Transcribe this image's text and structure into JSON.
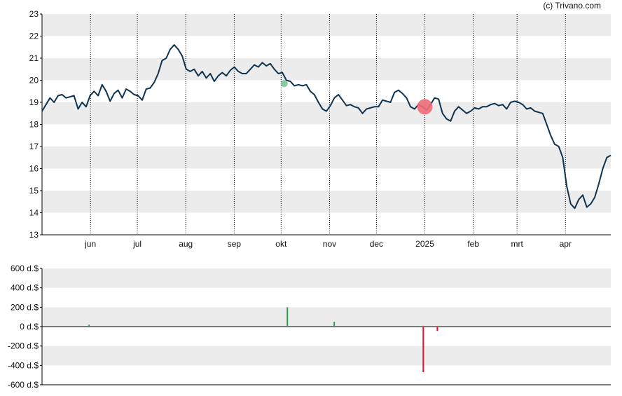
{
  "copyright": "(c) Trivano.com",
  "colors": {
    "price_line": "#0d3352",
    "band": "#ececec",
    "axis": "#000000",
    "buy": "#2e9e4e",
    "sell": "#e8132c",
    "marker_buy": "#7cc49a",
    "marker_sell": "#ef6b7a"
  },
  "chart_data": [
    {
      "type": "line",
      "title": "",
      "ylim": [
        13,
        23
      ],
      "y_ticks": [
        "23",
        "22",
        "21",
        "20",
        "19",
        "18",
        "17",
        "16",
        "15",
        "14",
        "13"
      ],
      "x_ticks": [
        "jun",
        "jul",
        "aug",
        "sep",
        "okt",
        "nov",
        "dec",
        "2025",
        "feb",
        "mrt",
        "apr"
      ],
      "grid": "dotted vertical month lines, alternating horizontal bands",
      "series": [
        {
          "values": [
            18.6,
            18.9,
            19.2,
            19.0,
            19.3,
            19.35,
            19.2,
            19.25,
            19.3,
            18.7,
            19.0,
            18.8,
            19.3,
            19.5,
            19.3,
            19.8,
            19.5,
            19.05,
            19.4,
            19.55,
            19.2,
            19.6,
            19.5,
            19.35,
            19.3,
            19.1,
            19.6,
            19.65,
            19.9,
            20.3,
            20.9,
            21.0,
            21.4,
            21.6,
            21.4,
            21.1,
            20.5,
            20.4,
            20.5,
            20.2,
            20.4,
            20.1,
            20.3,
            19.95,
            20.2,
            20.35,
            20.2,
            20.45,
            20.6,
            20.4,
            20.3,
            20.3,
            20.5,
            20.7,
            20.6,
            20.8,
            20.65,
            20.75,
            20.5,
            20.3,
            20.35,
            20.0,
            19.95,
            19.75,
            19.8,
            19.75,
            19.8,
            19.5,
            19.35,
            19.0,
            18.7,
            18.6,
            18.85,
            19.2,
            19.35,
            19.1,
            18.85,
            18.9,
            18.8,
            18.75,
            18.5,
            18.7,
            18.75,
            18.8,
            18.8,
            19.1,
            19.05,
            19.0,
            19.45,
            19.55,
            19.4,
            19.2,
            18.8,
            18.7,
            18.9,
            18.8,
            18.65,
            18.9,
            19.2,
            19.15,
            18.5,
            18.25,
            18.15,
            18.6,
            18.8,
            18.65,
            18.5,
            18.6,
            18.75,
            18.7,
            18.8,
            18.8,
            18.9,
            18.95,
            18.85,
            18.9,
            18.7,
            19.0,
            19.05,
            19.0,
            18.9,
            18.7,
            18.75,
            18.6,
            18.55,
            18.5,
            18.0,
            17.5,
            17.1,
            17.0,
            16.5,
            15.2,
            14.4,
            14.2,
            14.6,
            14.8,
            14.25,
            14.4,
            14.7,
            15.3,
            16.0,
            16.5,
            16.6
          ],
          "x_start": "2024-05-01",
          "x_end": "2025-04-30"
        }
      ],
      "markers": [
        {
          "kind": "buy",
          "date": "2024-10-03",
          "value": 19.85
        },
        {
          "kind": "sell",
          "date": "2025-01-01",
          "value": 18.8
        }
      ]
    },
    {
      "type": "bar",
      "title": "",
      "ylim": [
        -600,
        600
      ],
      "y_ticks": [
        "600 d.$",
        "400 d.$",
        "200 d.$",
        "0 d.$",
        "-200 d.$",
        "-400 d.$",
        "-600 d.$"
      ],
      "bars": [
        {
          "kind": "buy",
          "date": "2024-05-31",
          "value": 20
        },
        {
          "kind": "buy",
          "date": "2024-10-05",
          "value": 200
        },
        {
          "kind": "buy",
          "date": "2024-11-04",
          "value": 50
        },
        {
          "kind": "sell",
          "date": "2024-12-31",
          "value": -470
        },
        {
          "kind": "sell",
          "date": "2025-01-09",
          "value": -45
        }
      ]
    }
  ]
}
